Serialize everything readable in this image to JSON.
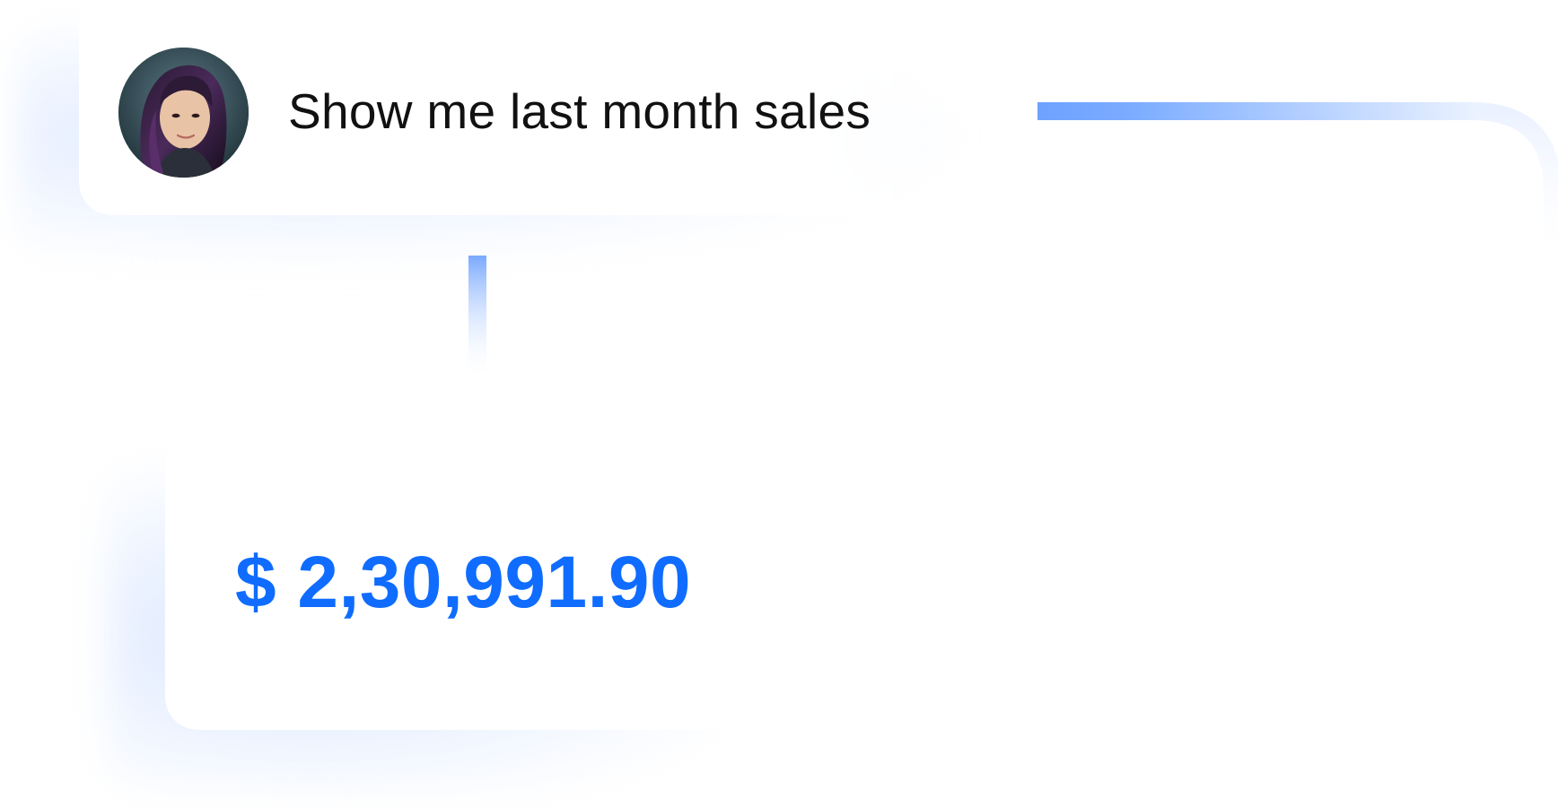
{
  "query": {
    "text": "Show me last month sales"
  },
  "result": {
    "value": "$ 2,30,991.90"
  },
  "colors": {
    "accent": "#0f6cff",
    "connector": "#7aa9ff",
    "query_text": "#111111"
  },
  "icons": {
    "avatar": "user-avatar"
  }
}
